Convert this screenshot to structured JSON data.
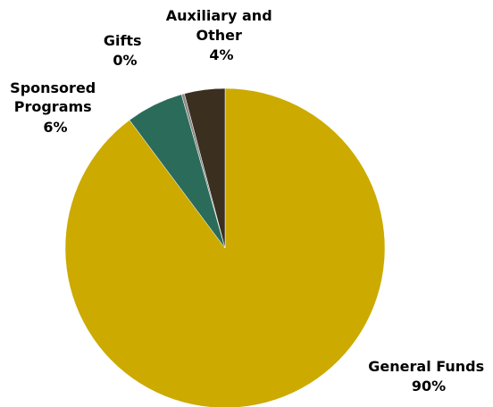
{
  "chart_data": {
    "type": "pie",
    "title": "",
    "start_angle_deg": 0,
    "direction": "clockwise",
    "slices": [
      {
        "label": "General Funds",
        "value": 89.8,
        "display": "90%",
        "color": "#ccaa00"
      },
      {
        "label": "Sponsored Programs",
        "value": 5.8,
        "display": "6%",
        "color": "#2b6b5a"
      },
      {
        "label": "Gifts",
        "value": 0.3,
        "display": "0%",
        "color": "#8a8a8a"
      },
      {
        "label": "Auxiliary and Other",
        "value": 4.1,
        "display": "4%",
        "color": "#3b2f1f"
      }
    ],
    "legend": "none"
  }
}
